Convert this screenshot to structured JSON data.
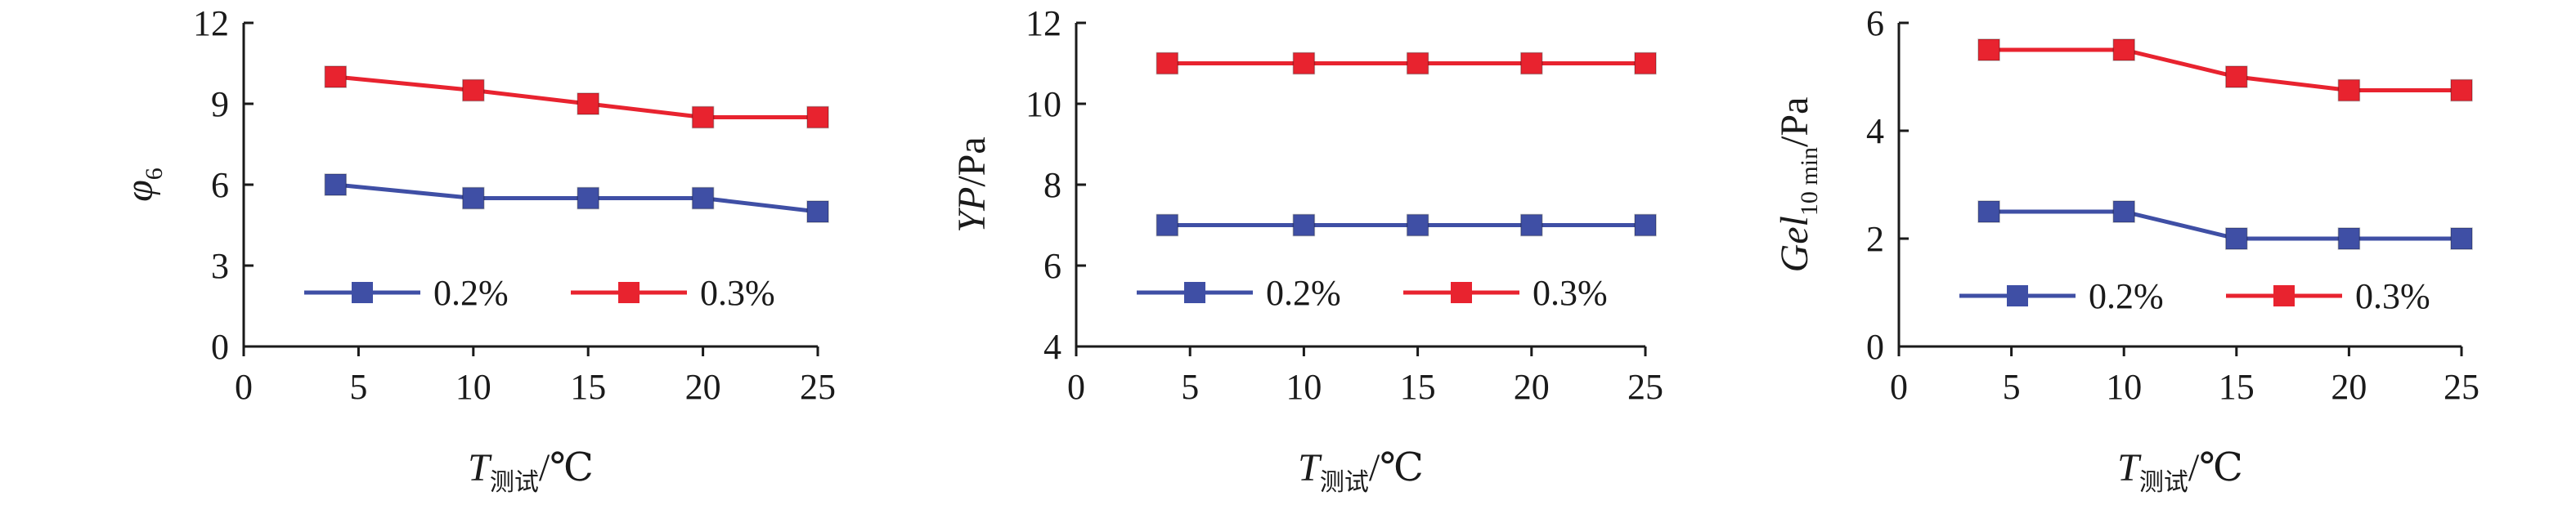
{
  "colors": {
    "series_02": "#3F4FA5",
    "series_03": "#E8232F",
    "axis": "#1a1a1a"
  },
  "chart_data": [
    {
      "type": "line",
      "ylabel": {
        "base": "φ",
        "sub": "6",
        "unit": ""
      },
      "xlabel": {
        "base": "T",
        "sub": "测试",
        "unit": "/℃"
      },
      "xlim": [
        0,
        25
      ],
      "ylim": [
        0,
        12
      ],
      "xticks": [
        "0",
        "5",
        "10",
        "15",
        "20",
        "25"
      ],
      "yticks": [
        "0",
        "3",
        "6",
        "9",
        "12"
      ],
      "x": [
        4,
        10,
        15,
        20,
        25
      ],
      "legend_position": "bottom-center",
      "grid": false,
      "series": [
        {
          "name": "0.2%",
          "color": "#3F4FA5",
          "values": [
            6,
            5.5,
            5.5,
            5.5,
            5
          ]
        },
        {
          "name": "0.3%",
          "color": "#E8232F",
          "values": [
            10,
            9.5,
            9,
            8.5,
            8.5
          ]
        }
      ]
    },
    {
      "type": "line",
      "ylabel": {
        "base": "YP",
        "sub": "",
        "unit": "/Pa"
      },
      "xlabel": {
        "base": "T",
        "sub": "测试",
        "unit": "/℃"
      },
      "xlim": [
        0,
        25
      ],
      "ylim": [
        4,
        12
      ],
      "xticks": [
        "0",
        "5",
        "10",
        "15",
        "20",
        "25"
      ],
      "yticks": [
        "4",
        "6",
        "8",
        "10",
        "12"
      ],
      "x": [
        4,
        10,
        15,
        20,
        25
      ],
      "legend_position": "bottom-center",
      "grid": false,
      "series": [
        {
          "name": "0.2%",
          "color": "#3F4FA5",
          "values": [
            7,
            7,
            7,
            7,
            7
          ]
        },
        {
          "name": "0.3%",
          "color": "#E8232F",
          "values": [
            11,
            11,
            11,
            11,
            11
          ]
        }
      ]
    },
    {
      "type": "line",
      "ylabel": {
        "base": "Gel",
        "sub": "10 min",
        "unit": "/Pa"
      },
      "xlabel": {
        "base": "T",
        "sub": "测试",
        "unit": "/℃"
      },
      "xlim": [
        0,
        25
      ],
      "ylim": [
        0,
        6
      ],
      "xticks": [
        "0",
        "5",
        "10",
        "15",
        "20",
        "25"
      ],
      "yticks": [
        "0",
        "2",
        "4",
        "6"
      ],
      "x": [
        4,
        10,
        15,
        20,
        25
      ],
      "legend_position": "bottom-center",
      "grid": false,
      "series": [
        {
          "name": "0.2%",
          "color": "#3F4FA5",
          "values": [
            2.5,
            2.5,
            2,
            2,
            2
          ]
        },
        {
          "name": "0.3%",
          "color": "#E8232F",
          "values": [
            5.5,
            5.5,
            5,
            4.75,
            4.75
          ]
        }
      ]
    }
  ]
}
